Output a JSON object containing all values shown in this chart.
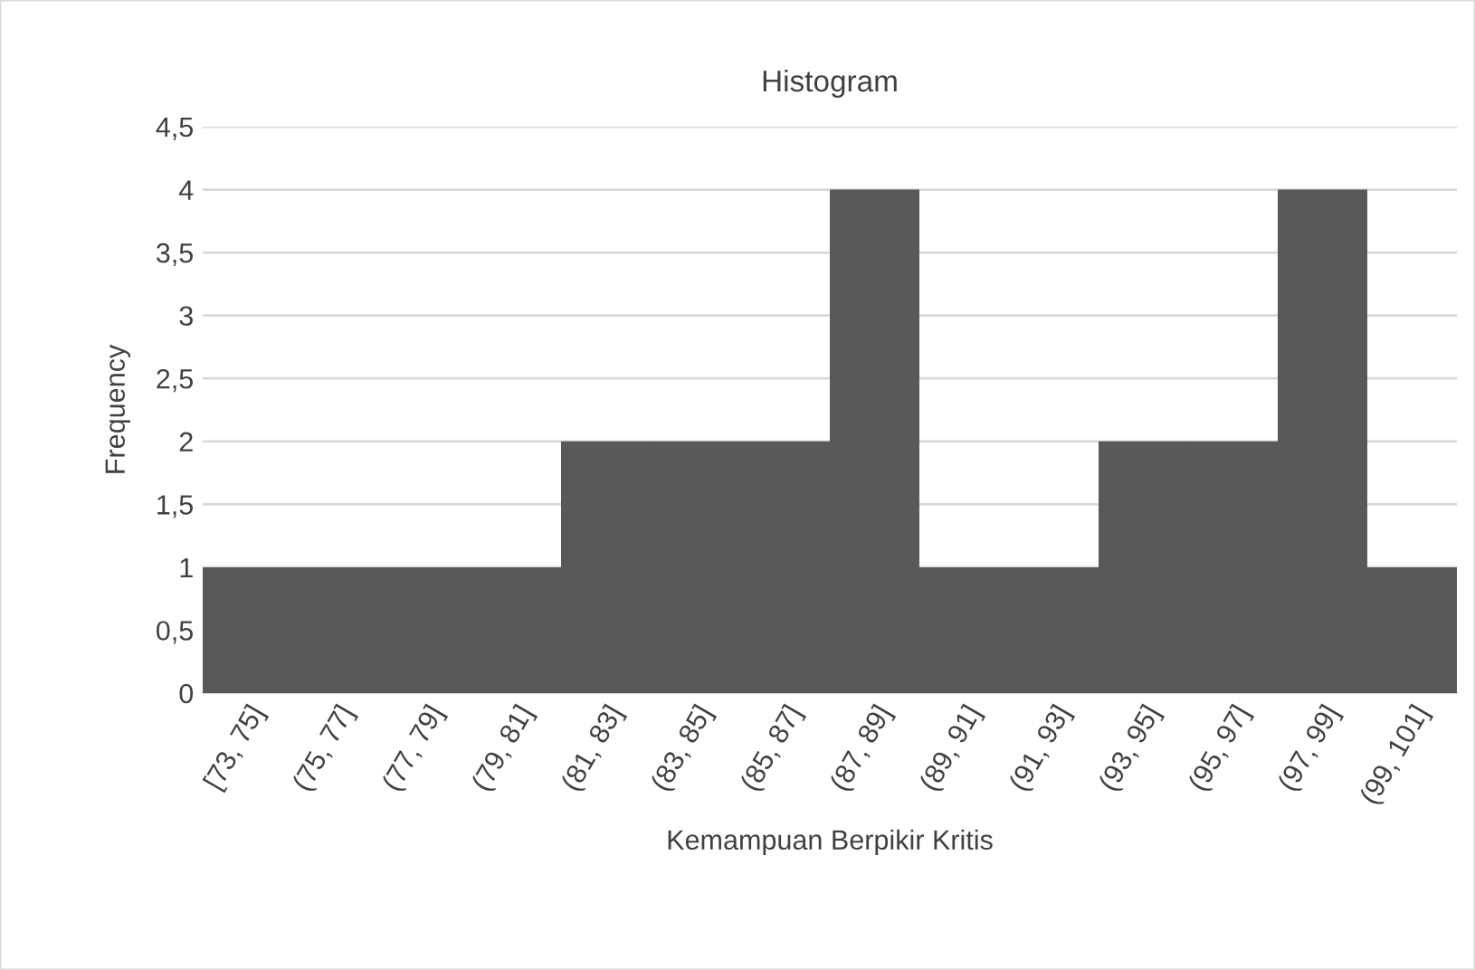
{
  "chart_data": {
    "type": "bar",
    "title": "Histogram",
    "xlabel": "Kemampuan Berpikir Kritis",
    "ylabel": "Frequency",
    "categories": [
      "[73, 75]",
      "(75, 77]",
      "(77, 79]",
      "(79, 81]",
      "(81, 83]",
      "(83, 85]",
      "(85, 87]",
      "(87, 89]",
      "(89, 91]",
      "(91, 93]",
      "(93, 95]",
      "(95, 97]",
      "(97, 99]",
      "(99, 101]"
    ],
    "values": [
      1,
      1,
      1,
      1,
      2,
      2,
      2,
      4,
      1,
      1,
      2,
      2,
      4,
      1
    ],
    "color": "#595959",
    "ylim": [
      0,
      4.5
    ],
    "yticks": [
      0,
      {
        "value": 0.5,
        "label": "0,5"
      },
      1,
      {
        "value": 1.5,
        "label": "1,5"
      },
      2,
      {
        "value": 2.5,
        "label": "2,5"
      },
      3,
      {
        "value": 3.5,
        "label": "3,5"
      },
      4,
      {
        "value": 4.5,
        "label": "4,5"
      }
    ],
    "grid": "y"
  }
}
